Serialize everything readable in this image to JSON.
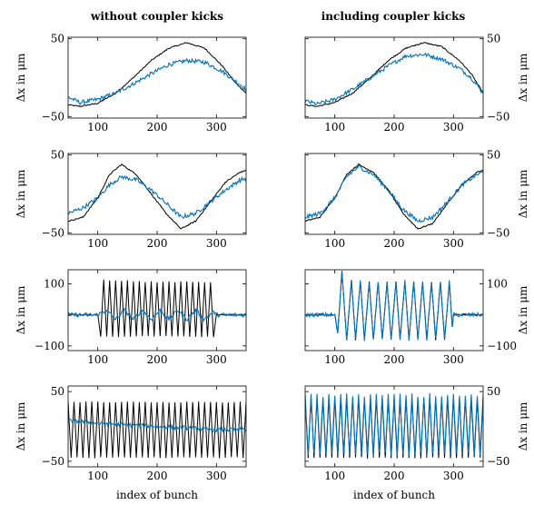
{
  "figure": {
    "column_titles": [
      "without coupler kicks",
      "including coupler kicks"
    ],
    "xlabel": "index of bunch",
    "ylabel": "Δx in μm",
    "colors": {
      "black_series": "#000000",
      "blue_series": "#0072BD"
    }
  },
  "chart_data": [
    {
      "type": "line",
      "panel": "row1-left",
      "title": "without coupler kicks",
      "xlabel": "",
      "ylabel": "Δx in μm",
      "xlim": [
        50,
        350
      ],
      "ylim": [
        -52,
        52
      ],
      "xticks": [
        100,
        200,
        300
      ],
      "yticks": [
        -50,
        50
      ],
      "series": [
        {
          "color": "#000000",
          "x": [
            50,
            70,
            100,
            130,
            160,
            190,
            220,
            250,
            280,
            310,
            330,
            350
          ],
          "y": [
            -35,
            -37,
            -33,
            -20,
            0,
            22,
            38,
            45,
            38,
            15,
            -5,
            -20
          ]
        },
        {
          "color": "#0072BD",
          "x": [
            50,
            70,
            100,
            130,
            160,
            190,
            220,
            250,
            280,
            310,
            330,
            350
          ],
          "y": [
            -25,
            -32,
            -28,
            -20,
            -8,
            5,
            17,
            22,
            20,
            8,
            -3,
            -15
          ]
        }
      ]
    },
    {
      "type": "line",
      "panel": "row1-right",
      "title": "including coupler kicks",
      "xlabel": "",
      "ylabel": "Δx in μm",
      "xlim": [
        50,
        350
      ],
      "ylim": [
        -52,
        52
      ],
      "xticks": [
        100,
        200,
        300
      ],
      "yticks": [
        -50,
        50
      ],
      "series": [
        {
          "color": "#000000",
          "x": [
            50,
            70,
            100,
            130,
            160,
            190,
            220,
            250,
            280,
            310,
            330,
            350
          ],
          "y": [
            -35,
            -37,
            -32,
            -20,
            0,
            22,
            38,
            45,
            40,
            22,
            5,
            -20
          ]
        },
        {
          "color": "#0072BD",
          "x": [
            50,
            70,
            100,
            130,
            160,
            190,
            220,
            250,
            280,
            310,
            330,
            350
          ],
          "y": [
            -30,
            -34,
            -28,
            -15,
            0,
            15,
            28,
            30,
            24,
            12,
            0,
            -20
          ]
        }
      ]
    },
    {
      "type": "line",
      "panel": "row2-left",
      "xlabel": "",
      "ylabel": "Δx in μm",
      "xlim": [
        50,
        350
      ],
      "ylim": [
        -52,
        52
      ],
      "xticks": [
        100,
        200,
        300
      ],
      "yticks": [
        -50,
        50
      ],
      "series": [
        {
          "color": "#000000",
          "x": [
            50,
            75,
            100,
            120,
            140,
            165,
            190,
            215,
            240,
            265,
            290,
            315,
            340,
            350
          ],
          "y": [
            -35,
            -30,
            -5,
            25,
            38,
            25,
            0,
            -25,
            -45,
            -35,
            -10,
            15,
            28,
            30
          ]
        },
        {
          "color": "#0072BD",
          "x": [
            50,
            75,
            100,
            120,
            140,
            165,
            190,
            215,
            240,
            265,
            290,
            315,
            340,
            350
          ],
          "y": [
            -25,
            -18,
            -5,
            12,
            22,
            18,
            5,
            -12,
            -30,
            -25,
            -10,
            5,
            18,
            20
          ]
        }
      ]
    },
    {
      "type": "line",
      "panel": "row2-right",
      "xlabel": "",
      "ylabel": "Δx in μm",
      "xlim": [
        50,
        350
      ],
      "ylim": [
        -52,
        52
      ],
      "xticks": [
        100,
        200,
        300
      ],
      "yticks": [
        -50,
        50
      ],
      "series": [
        {
          "color": "#000000",
          "x": [
            50,
            75,
            100,
            120,
            140,
            165,
            190,
            215,
            240,
            265,
            290,
            315,
            340,
            350
          ],
          "y": [
            -35,
            -30,
            -5,
            25,
            38,
            28,
            5,
            -25,
            -45,
            -38,
            -12,
            12,
            28,
            30
          ]
        },
        {
          "color": "#0072BD",
          "x": [
            50,
            75,
            100,
            120,
            140,
            165,
            190,
            215,
            240,
            265,
            290,
            315,
            340,
            350
          ],
          "y": [
            -30,
            -25,
            -5,
            22,
            35,
            25,
            5,
            -20,
            -35,
            -30,
            -10,
            12,
            25,
            28
          ]
        }
      ]
    },
    {
      "type": "line",
      "panel": "row3-left",
      "xlabel": "",
      "ylabel": "Δx in μm",
      "xlim": [
        50,
        350
      ],
      "ylim": [
        -115,
        145
      ],
      "xticks": [
        100,
        200,
        300
      ],
      "yticks": [
        -100,
        100
      ],
      "series": [
        {
          "color": "#000000",
          "x": [
            50,
            100,
            105,
            110,
            115,
            120,
            125,
            130,
            135,
            140,
            145,
            150,
            155,
            160,
            165,
            170,
            175,
            180,
            185,
            190,
            195,
            200,
            205,
            210,
            215,
            220,
            225,
            230,
            235,
            240,
            245,
            250,
            255,
            260,
            265,
            270,
            275,
            280,
            285,
            290,
            295,
            300,
            350
          ],
          "y": [
            0,
            0,
            -70,
            115,
            -70,
            112,
            -70,
            110,
            -70,
            108,
            -70,
            110,
            -70,
            108,
            -70,
            108,
            -70,
            106,
            -70,
            108,
            -70,
            106,
            -70,
            106,
            -70,
            106,
            -70,
            106,
            -70,
            106,
            -70,
            106,
            -70,
            106,
            -70,
            106,
            -70,
            106,
            -70,
            106,
            -70,
            0,
            0
          ]
        },
        {
          "color": "#0072BD",
          "x": [
            50,
            100,
            115,
            130,
            145,
            160,
            175,
            190,
            205,
            220,
            235,
            250,
            265,
            280,
            295,
            300,
            350
          ],
          "y": [
            0,
            0,
            15,
            -15,
            15,
            -15,
            15,
            -15,
            15,
            -15,
            15,
            -15,
            15,
            -15,
            10,
            0,
            0
          ]
        }
      ]
    },
    {
      "type": "line",
      "panel": "row3-right",
      "xlabel": "",
      "ylabel": "Δx in μm",
      "xlim": [
        50,
        350
      ],
      "ylim": [
        -115,
        145
      ],
      "xticks": [
        100,
        200,
        300
      ],
      "yticks": [
        -100,
        100
      ],
      "series": [
        {
          "color": "#000000",
          "x": [
            50,
            100,
            105,
            112,
            120,
            128,
            135,
            143,
            150,
            158,
            165,
            173,
            180,
            188,
            195,
            203,
            210,
            218,
            225,
            233,
            240,
            248,
            255,
            263,
            270,
            278,
            285,
            293,
            298,
            300,
            350
          ],
          "y": [
            0,
            0,
            -60,
            140,
            -80,
            110,
            -80,
            108,
            -80,
            108,
            -80,
            106,
            -80,
            106,
            -80,
            106,
            -80,
            106,
            -80,
            106,
            -80,
            106,
            -80,
            106,
            -80,
            106,
            -80,
            106,
            -40,
            0,
            0
          ]
        },
        {
          "color": "#0072BD",
          "x": [
            50,
            100,
            105,
            112,
            120,
            128,
            135,
            143,
            150,
            158,
            165,
            173,
            180,
            188,
            195,
            203,
            210,
            218,
            225,
            233,
            240,
            248,
            255,
            263,
            270,
            278,
            285,
            293,
            298,
            300,
            350
          ],
          "y": [
            0,
            0,
            -60,
            140,
            -80,
            110,
            -80,
            108,
            -80,
            108,
            -80,
            106,
            -80,
            106,
            -80,
            106,
            -80,
            106,
            -80,
            106,
            -80,
            106,
            -80,
            106,
            -80,
            106,
            -80,
            106,
            -40,
            0,
            0
          ]
        }
      ]
    },
    {
      "type": "line",
      "panel": "row4-left",
      "xlabel": "index of bunch",
      "ylabel": "Δx in μm",
      "xlim": [
        50,
        350
      ],
      "ylim": [
        -58,
        58
      ],
      "xticks": [
        100,
        200,
        300
      ],
      "yticks": [
        -50,
        50
      ],
      "series": [
        {
          "color": "#000000",
          "x": [
            50,
            55,
            60,
            65,
            70,
            75,
            80,
            85,
            90,
            95,
            100,
            105,
            110,
            115,
            120,
            125,
            130,
            135,
            140,
            145,
            150,
            155,
            160,
            165,
            170,
            175,
            180,
            185,
            190,
            195,
            200,
            205,
            210,
            215,
            220,
            225,
            230,
            235,
            240,
            245,
            250,
            255,
            260,
            265,
            270,
            275,
            280,
            285,
            290,
            295,
            300,
            305,
            310,
            315,
            320,
            325,
            330,
            335,
            340,
            345,
            350
          ],
          "y": [
            35,
            -45,
            35,
            -45,
            35,
            -45,
            35,
            -45,
            35,
            -45,
            35,
            -45,
            35,
            -45,
            35,
            -45,
            35,
            -45,
            35,
            -45,
            35,
            -45,
            35,
            -45,
            35,
            -45,
            35,
            -45,
            35,
            -45,
            35,
            -45,
            35,
            -45,
            35,
            -45,
            35,
            -45,
            35,
            -45,
            35,
            -45,
            35,
            -45,
            35,
            -45,
            35,
            -45,
            35,
            -45,
            35,
            -45,
            35,
            -45,
            35,
            -45,
            35,
            -45,
            35,
            -45,
            35
          ]
        },
        {
          "color": "#0072BD",
          "x": [
            50,
            100,
            150,
            200,
            250,
            300,
            350
          ],
          "y": [
            8,
            5,
            2,
            0,
            -2,
            -5,
            -4
          ]
        }
      ]
    },
    {
      "type": "line",
      "panel": "row4-right",
      "xlabel": "index of bunch",
      "ylabel": "Δx in μm",
      "xlim": [
        50,
        350
      ],
      "ylim": [
        -58,
        58
      ],
      "xticks": [
        100,
        200,
        300
      ],
      "yticks": [
        -50,
        50
      ],
      "series": [
        {
          "color": "#000000",
          "x": [
            50,
            55,
            60,
            65,
            70,
            75,
            80,
            85,
            90,
            95,
            100,
            105,
            110,
            115,
            120,
            125,
            130,
            135,
            140,
            145,
            150,
            155,
            160,
            165,
            170,
            175,
            180,
            185,
            190,
            195,
            200,
            205,
            210,
            215,
            220,
            225,
            230,
            235,
            240,
            245,
            250,
            255,
            260,
            265,
            270,
            275,
            280,
            285,
            290,
            295,
            300,
            305,
            310,
            315,
            320,
            325,
            330,
            335,
            340,
            345,
            350
          ],
          "y": [
            40,
            -45,
            40,
            -45,
            40,
            -45,
            40,
            -45,
            40,
            -45,
            40,
            -45,
            40,
            -45,
            40,
            -45,
            40,
            -45,
            40,
            -45,
            40,
            -45,
            40,
            -45,
            40,
            -45,
            40,
            -45,
            40,
            -45,
            40,
            -45,
            40,
            -45,
            40,
            -45,
            40,
            -45,
            40,
            -45,
            40,
            -45,
            40,
            -45,
            40,
            -45,
            40,
            -45,
            40,
            -45,
            40,
            -45,
            40,
            -45,
            40,
            -45,
            40,
            -45,
            40,
            -45,
            40
          ]
        },
        {
          "color": "#0072BD",
          "x": [
            50,
            55,
            60,
            65,
            70,
            75,
            80,
            85,
            90,
            95,
            100,
            105,
            110,
            115,
            120,
            125,
            130,
            135,
            140,
            145,
            150,
            155,
            160,
            165,
            170,
            175,
            180,
            185,
            190,
            195,
            200,
            205,
            210,
            215,
            220,
            225,
            230,
            235,
            240,
            245,
            250,
            255,
            260,
            265,
            270,
            275,
            280,
            285,
            290,
            295,
            300,
            305,
            310,
            315,
            320,
            325,
            330,
            335,
            340,
            345,
            350
          ],
          "y": [
            45,
            -40,
            45,
            -40,
            45,
            -40,
            45,
            -40,
            45,
            -40,
            45,
            -40,
            45,
            -40,
            45,
            -40,
            45,
            -40,
            45,
            -40,
            45,
            -40,
            45,
            -40,
            45,
            -40,
            45,
            -40,
            45,
            -40,
            45,
            -40,
            45,
            -40,
            45,
            -40,
            45,
            -40,
            45,
            -40,
            45,
            -40,
            45,
            -40,
            45,
            -40,
            45,
            -40,
            45,
            -40,
            45,
            -40,
            45,
            -40,
            45,
            -40,
            45,
            -40,
            45,
            -40,
            45
          ]
        }
      ]
    }
  ]
}
